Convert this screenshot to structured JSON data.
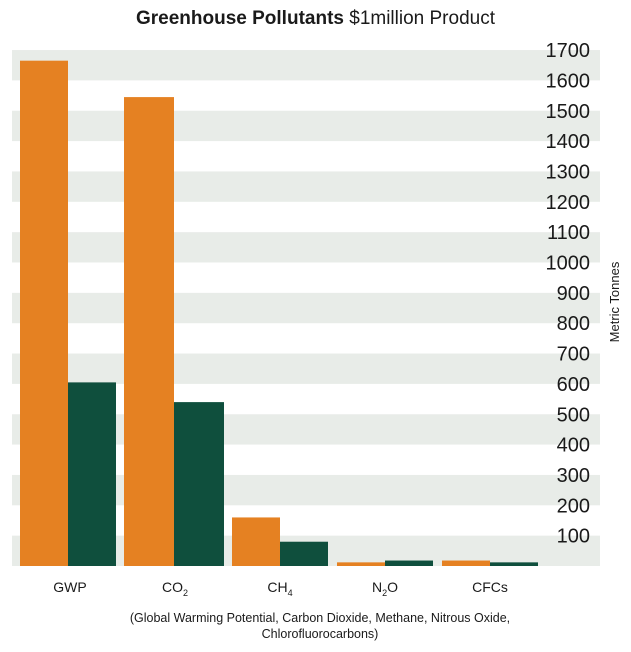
{
  "title": {
    "bold": "Greenhouse Pollutants",
    "rest": " $1million Product"
  },
  "caption_lines": [
    "(Global Warming Potential, Carbon Dioxide, Methane, Nitrous Oxide,",
    "Chlorofluorocarbons)"
  ],
  "colors": {
    "series1": "#e58122",
    "series2": "#0f4f3d",
    "band": "#e8ece8"
  },
  "chart_data": {
    "type": "bar",
    "title": "Greenhouse Pollutants $1million Product",
    "categories": [
      {
        "base": "GWP",
        "sub": ""
      },
      {
        "base": "CO",
        "sub": "2"
      },
      {
        "base": "CH",
        "sub": "4"
      },
      {
        "base": "N",
        "sub": "2",
        "tail": "O"
      },
      {
        "base": "CFCs",
        "sub": ""
      }
    ],
    "series": [
      {
        "color": "#e58122",
        "values": [
          1665,
          1545,
          160,
          12,
          18
        ]
      },
      {
        "color": "#0f4f3d",
        "values": [
          605,
          540,
          80,
          18,
          12
        ]
      }
    ],
    "ylabel": "Metric Tonnes",
    "yticks": [
      100,
      200,
      300,
      400,
      500,
      600,
      700,
      800,
      900,
      1000,
      1100,
      1200,
      1300,
      1400,
      1500,
      1600,
      1700
    ],
    "ylim": [
      0,
      1750
    ],
    "grid": "alternating horizontal bands",
    "legend": "none"
  }
}
